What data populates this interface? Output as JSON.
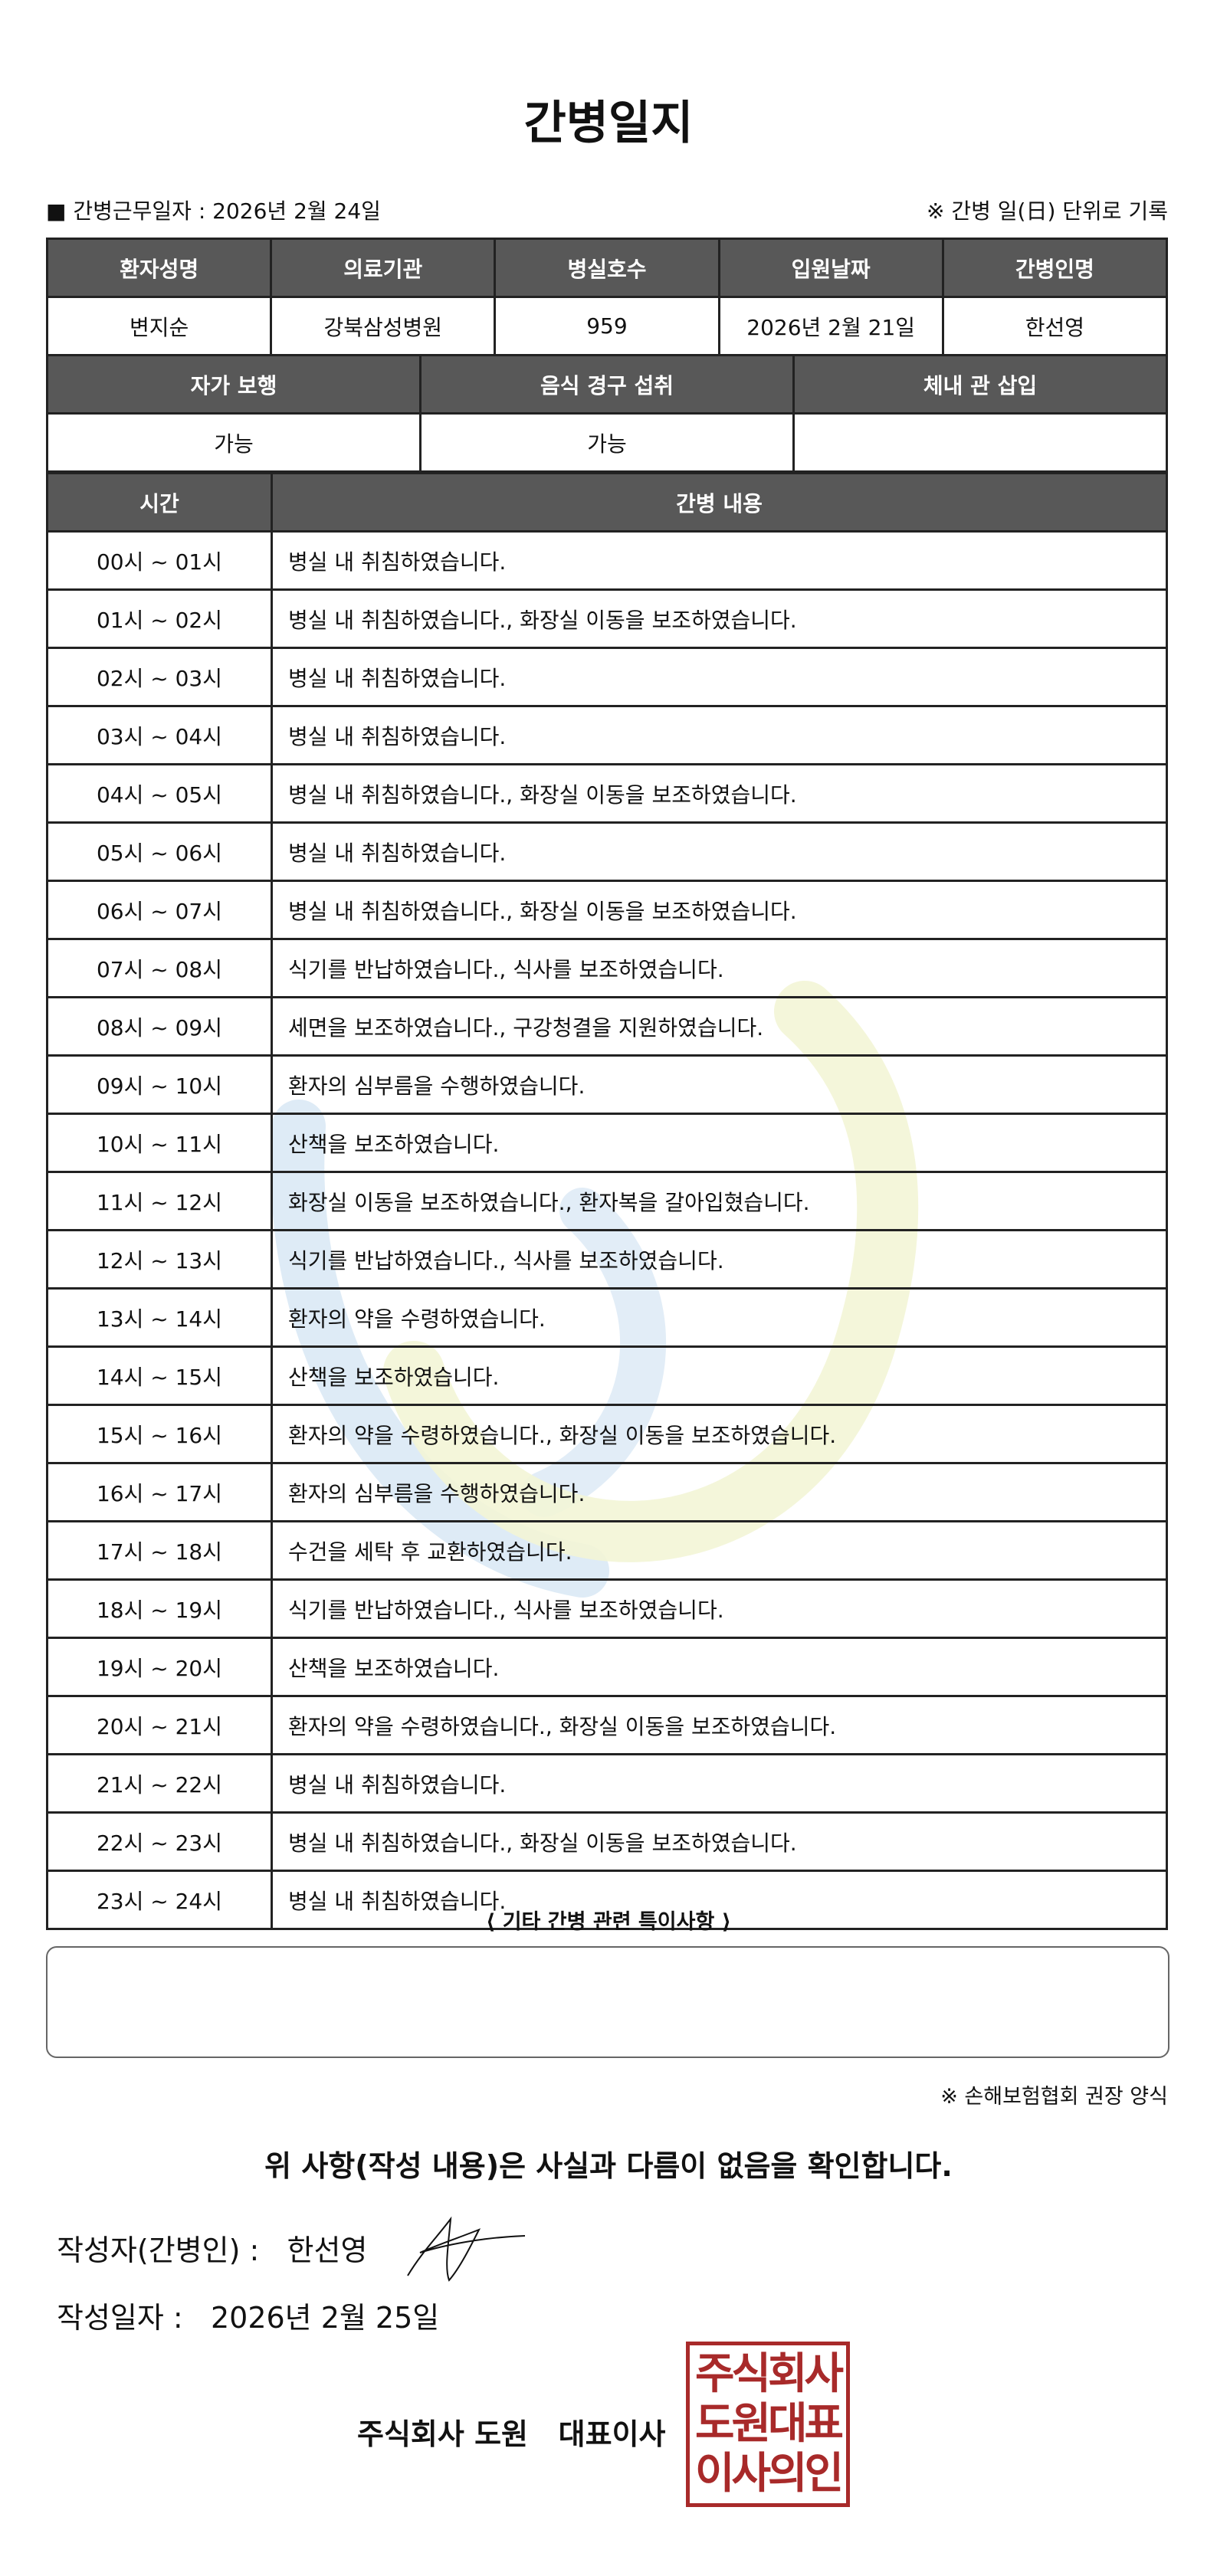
{
  "title": "간병일지",
  "info": {
    "work_date_label": "■ 간병근무일자 :  2026년 2월 24일",
    "note": "※ 간병 일(日) 단위로 기록"
  },
  "patient_table": {
    "headers": [
      "환자성명",
      "의료기관",
      "병실호수",
      "입원날짜",
      "간병인명"
    ],
    "values": [
      "변지순",
      "강북삼성병원",
      "959",
      "2026년 2월 21일",
      "한선영"
    ]
  },
  "status_table": {
    "headers": [
      "자가 보행",
      "음식 경구 섭취",
      "체내 관 삽입"
    ],
    "values": [
      "가능",
      "가능",
      ""
    ]
  },
  "care_table": {
    "headers": [
      "시간",
      "간병 내용"
    ],
    "rows": [
      [
        "00시 ~ 01시",
        "병실 내 취침하였습니다."
      ],
      [
        "01시 ~ 02시",
        "병실 내 취침하였습니다., 화장실 이동을 보조하였습니다."
      ],
      [
        "02시 ~ 03시",
        "병실 내 취침하였습니다."
      ],
      [
        "03시 ~ 04시",
        "병실 내 취침하였습니다."
      ],
      [
        "04시 ~ 05시",
        "병실 내 취침하였습니다., 화장실 이동을 보조하였습니다."
      ],
      [
        "05시 ~ 06시",
        "병실 내 취침하였습니다."
      ],
      [
        "06시 ~ 07시",
        "병실 내 취침하였습니다., 화장실 이동을 보조하였습니다."
      ],
      [
        "07시 ~ 08시",
        "식기를 반납하였습니다., 식사를 보조하였습니다."
      ],
      [
        "08시 ~ 09시",
        "세면을 보조하였습니다., 구강청결을 지원하였습니다."
      ],
      [
        "09시 ~ 10시",
        "환자의 심부름을 수행하였습니다."
      ],
      [
        "10시 ~ 11시",
        "산책을 보조하였습니다."
      ],
      [
        "11시 ~ 12시",
        "화장실 이동을 보조하였습니다., 환자복을 갈아입혔습니다."
      ],
      [
        "12시 ~ 13시",
        "식기를 반납하였습니다., 식사를 보조하였습니다."
      ],
      [
        "13시 ~ 14시",
        "환자의 약을 수령하였습니다."
      ],
      [
        "14시 ~ 15시",
        "산책을 보조하였습니다."
      ],
      [
        "15시 ~ 16시",
        "환자의 약을 수령하였습니다., 화장실 이동을 보조하였습니다."
      ],
      [
        "16시 ~ 17시",
        "환자의 심부름을 수행하였습니다."
      ],
      [
        "17시 ~ 18시",
        "수건을 세탁 후 교환하였습니다."
      ],
      [
        "18시 ~ 19시",
        "식기를 반납하였습니다., 식사를 보조하였습니다."
      ],
      [
        "19시 ~ 20시",
        "산책을 보조하였습니다."
      ],
      [
        "20시 ~ 21시",
        "환자의 약을 수령하였습니다., 화장실 이동을 보조하였습니다."
      ],
      [
        "21시 ~ 22시",
        "병실 내 취침하였습니다."
      ],
      [
        "22시 ~ 23시",
        "병실 내 취침하였습니다., 화장실 이동을 보조하였습니다."
      ],
      [
        "23시 ~ 24시",
        "병실 내 취침하였습니다."
      ]
    ]
  },
  "notes": {
    "title": "⟨ 기타 간병 관련 특이사항 ⟩",
    "content": ""
  },
  "form_note": "※ 손해보험협회 권장 양식",
  "confirmation": "위 사항(작성 내용)은 사실과 다름이 없음을 확인합니다.",
  "writer": "작성자(간병인) :   한선영",
  "written_date": "작성일자 :   2026년 2월 25일",
  "company": "주식회사 도원   대표이사",
  "seal_lines": [
    "주식회사",
    "도원대표",
    "이사의인"
  ],
  "colors": {
    "header_bg": "#585858",
    "seal_red": "#a82a2a",
    "watermark_blue": "#d6e6f4",
    "watermark_yellow": "#f3f5d6"
  }
}
